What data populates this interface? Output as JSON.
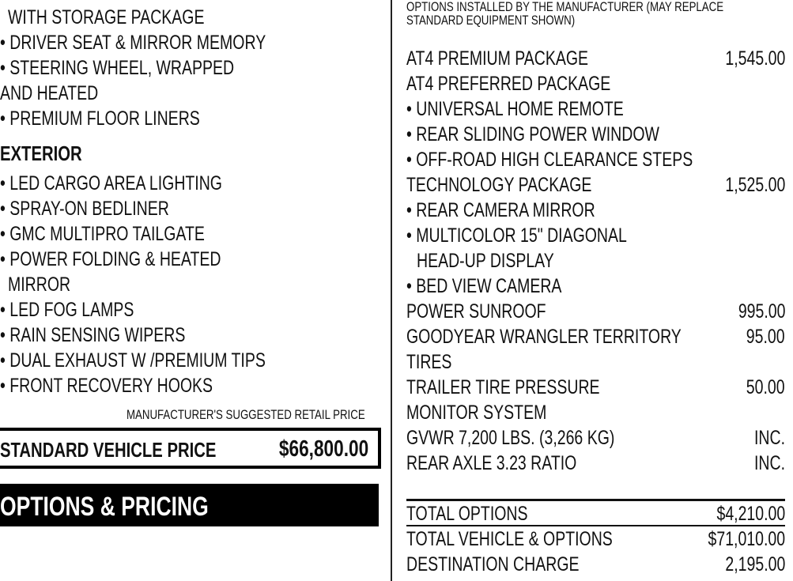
{
  "left": {
    "lines": [
      {
        "text": "WITH STORAGE PACKAGE",
        "indent": 1
      },
      {
        "text": "• DRIVER SEAT & MIRROR MEMORY",
        "indent": 0
      },
      {
        "text": "• STEERING WHEEL, WRAPPED",
        "indent": 0
      },
      {
        "text": "AND HEATED",
        "indent": 0
      },
      {
        "text": "• PREMIUM FLOOR LINERS",
        "indent": 0
      }
    ],
    "exterior_heading": "EXTERIOR",
    "exterior_lines": [
      {
        "text": "• LED CARGO AREA LIGHTING",
        "indent": 0
      },
      {
        "text": "• SPRAY-ON BEDLINER",
        "indent": 0
      },
      {
        "text": "• GMC MULTIPRO TAILGATE",
        "indent": 0
      },
      {
        "text": "• POWER FOLDING & HEATED",
        "indent": 0
      },
      {
        "text": "MIRROR",
        "indent": 1
      },
      {
        "text": "• LED FOG LAMPS",
        "indent": 0
      },
      {
        "text": "• RAIN SENSING WIPERS",
        "indent": 0
      },
      {
        "text": "• DUAL EXHAUST W /PREMIUM TIPS",
        "indent": 0
      },
      {
        "text": "• FRONT RECOVERY HOOKS",
        "indent": 0
      }
    ],
    "msrp_label": "MANUFACTURER'S SUGGESTED RETAIL PRICE",
    "standard_price_label": "STANDARD VEHICLE PRICE",
    "standard_price_value": "$66,800.00",
    "options_heading": "OPTIONS & PRICING"
  },
  "right": {
    "note_line1": "OPTIONS INSTALLED BY THE MANUFACTURER (MAY REPLACE",
    "note_line2": "STANDARD EQUIPMENT SHOWN)",
    "options": [
      {
        "text": "AT4 PREMIUM PACKAGE",
        "price": "1,545.00",
        "indent": 0
      },
      {
        "text": "AT4 PREFERRED PACKAGE",
        "price": "",
        "indent": 0
      },
      {
        "text": "• UNIVERSAL HOME REMOTE",
        "price": "",
        "indent": 0
      },
      {
        "text": "• REAR SLIDING POWER WINDOW",
        "price": "",
        "indent": 0
      },
      {
        "text": "• OFF-ROAD HIGH CLEARANCE STEPS",
        "price": "",
        "indent": 0
      },
      {
        "text": "TECHNOLOGY PACKAGE",
        "price": "1,525.00",
        "indent": 0
      },
      {
        "text": "• REAR CAMERA MIRROR",
        "price": "",
        "indent": 0
      },
      {
        "text": "• MULTICOLOR 15\" DIAGONAL",
        "price": "",
        "indent": 0
      },
      {
        "text": "HEAD-UP DISPLAY",
        "price": "",
        "indent": 1
      },
      {
        "text": "• BED VIEW CAMERA",
        "price": "",
        "indent": 0
      },
      {
        "text": "POWER SUNROOF",
        "price": "995.00",
        "indent": 0
      },
      {
        "text": "GOODYEAR WRANGLER TERRITORY",
        "price": "95.00",
        "indent": 0
      },
      {
        "text": "TIRES",
        "price": "",
        "indent": 0
      },
      {
        "text": "TRAILER TIRE PRESSURE",
        "price": "50.00",
        "indent": 0
      },
      {
        "text": "MONITOR SYSTEM",
        "price": "",
        "indent": 0
      },
      {
        "text": "GVWR 7,200 LBS. (3,266 KG)",
        "price": "INC.",
        "indent": 0
      },
      {
        "text": "REAR AXLE 3.23 RATIO",
        "price": "INC.",
        "indent": 0
      }
    ],
    "totals": [
      {
        "label": "TOTAL OPTIONS",
        "value": "$4,210.00"
      },
      {
        "label": "TOTAL VEHICLE & OPTIONS",
        "value": "$71,010.00"
      },
      {
        "label": "DESTINATION CHARGE",
        "value": "2,195.00"
      }
    ]
  }
}
